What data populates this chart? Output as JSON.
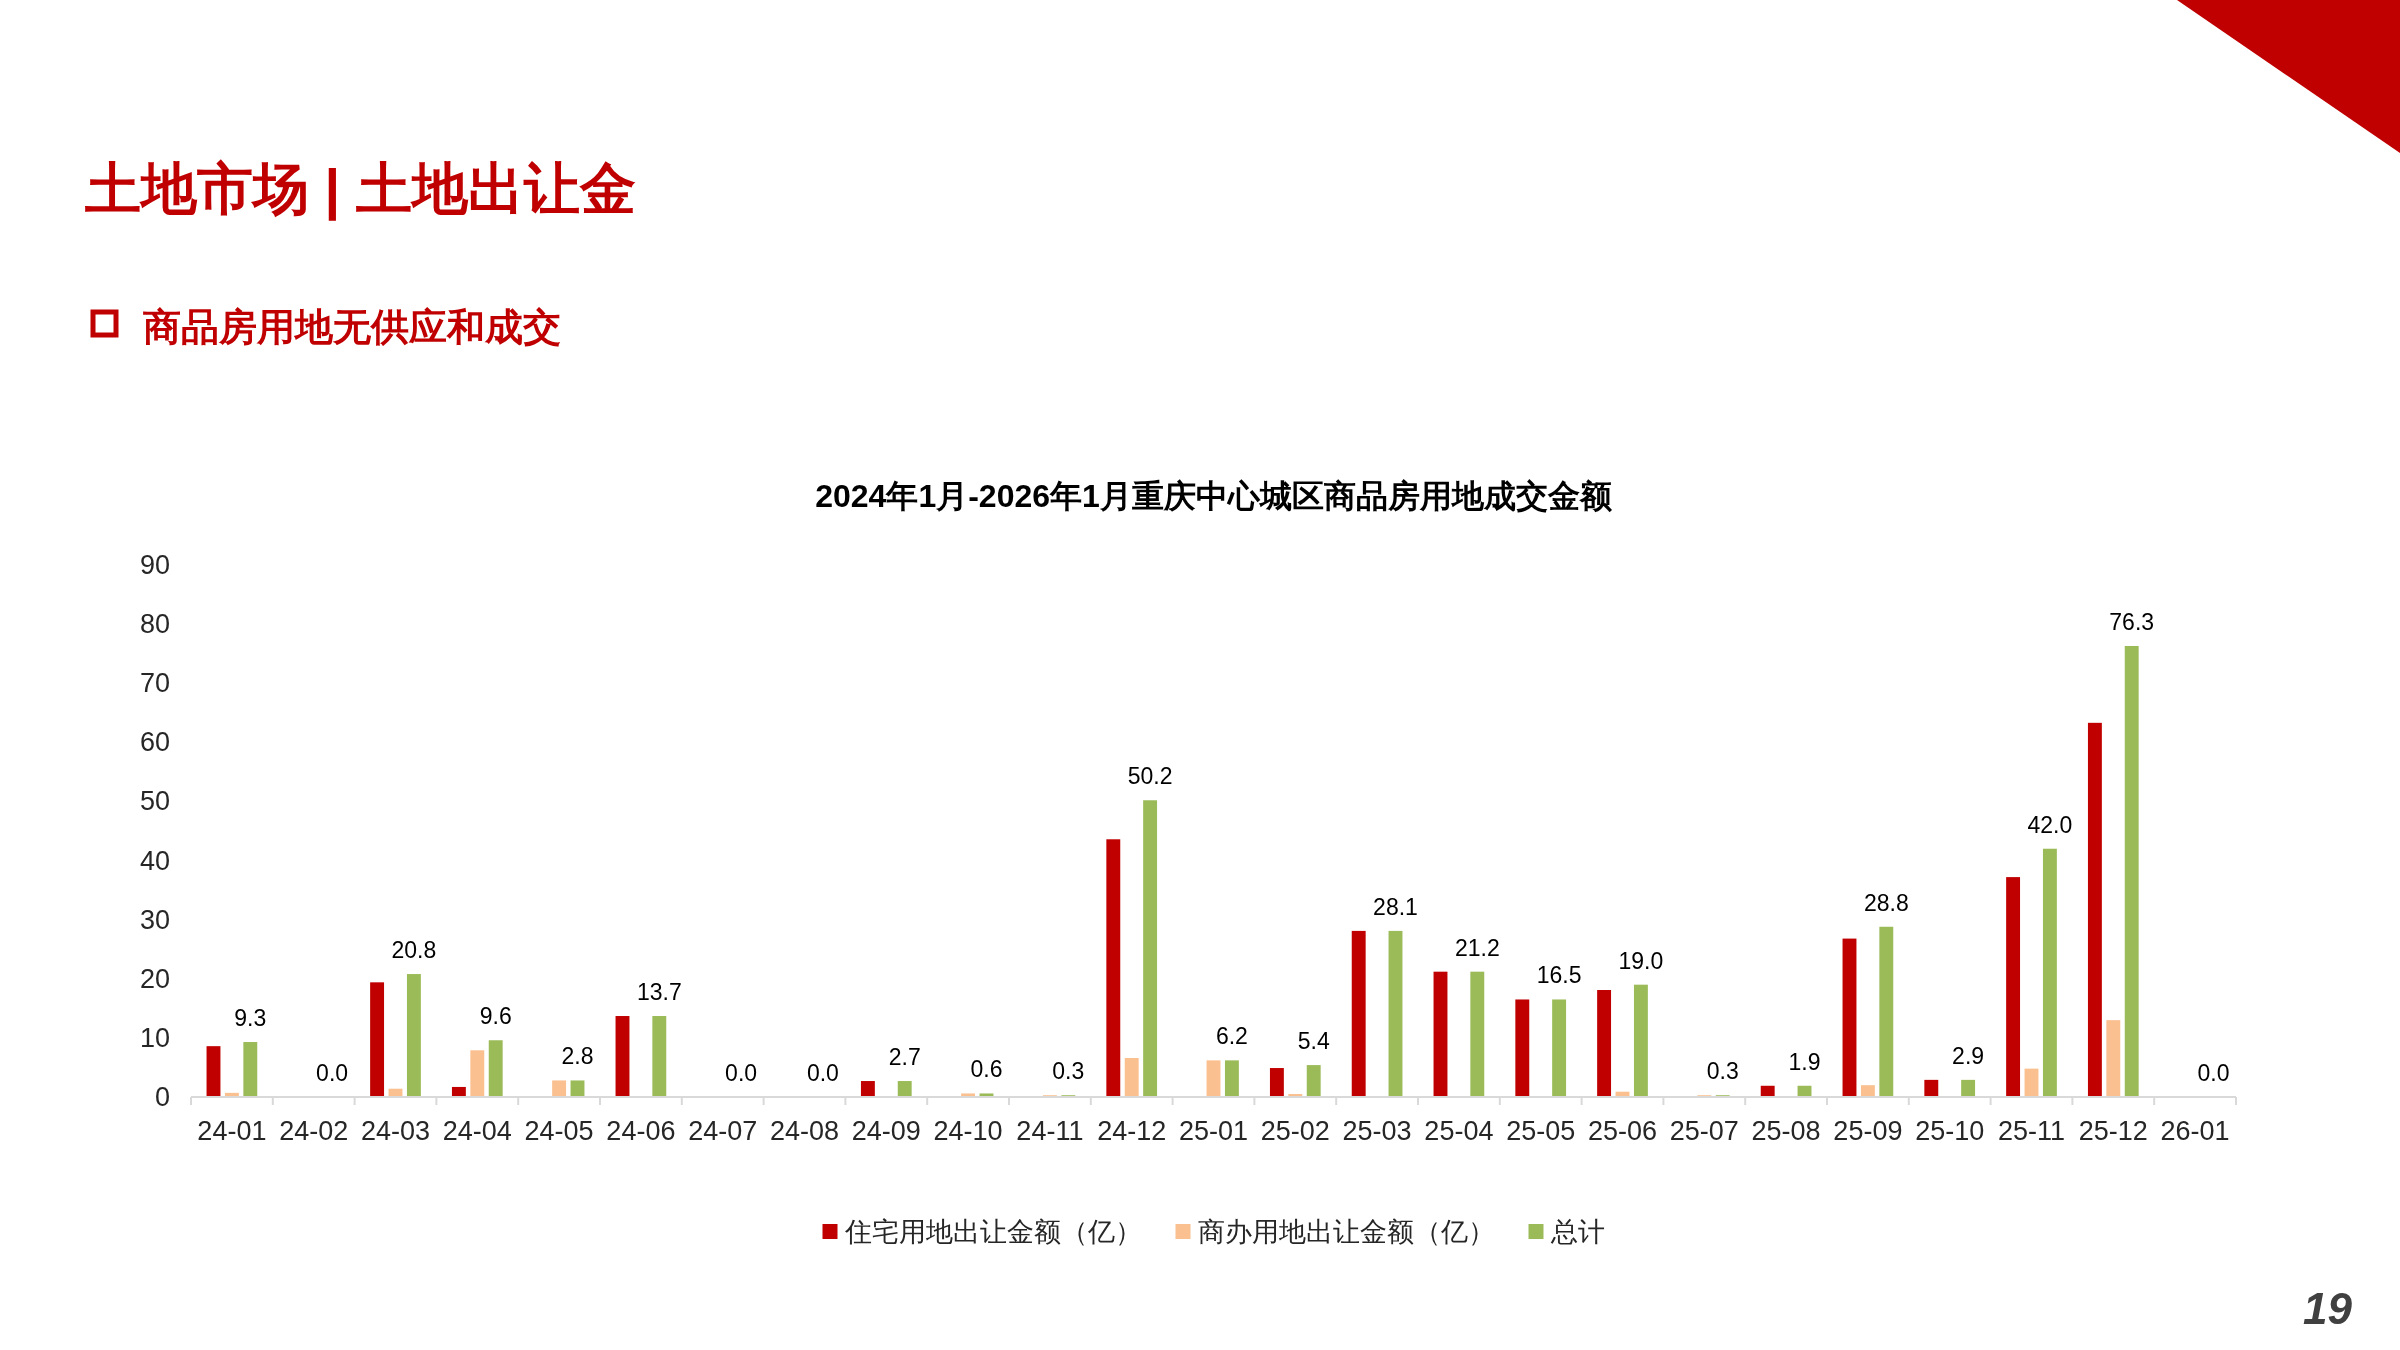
{
  "chart_data": {
    "type": "bar",
    "title": "2024年1月-2026年1月重庆中心城区商品房用地成交金额",
    "categories": [
      "24-01",
      "24-02",
      "24-03",
      "24-04",
      "24-05",
      "24-06",
      "24-07",
      "24-08",
      "24-09",
      "24-10",
      "24-11",
      "24-12",
      "25-01",
      "25-02",
      "25-03",
      "25-04",
      "25-05",
      "25-06",
      "25-07",
      "25-08",
      "25-09",
      "25-10",
      "25-11",
      "25-12",
      "26-01"
    ],
    "series": [
      {
        "name": "住宅用地出让金额（亿）",
        "color": "#c00000",
        "values": [
          8.6,
          0,
          19.4,
          1.7,
          0,
          13.7,
          0,
          0,
          2.7,
          0,
          0,
          43.6,
          0,
          4.9,
          28.1,
          21.2,
          16.5,
          18.1,
          0,
          1.9,
          26.8,
          2.9,
          37.2,
          63.3,
          0
        ]
      },
      {
        "name": "商办用地出让金额（亿）",
        "color": "#fac090",
        "values": [
          0.7,
          0,
          1.4,
          7.9,
          2.8,
          0,
          0,
          0,
          0,
          0.6,
          0.3,
          6.6,
          6.2,
          0.5,
          0,
          0,
          0,
          0.9,
          0.3,
          0,
          2.0,
          0,
          4.8,
          13.0,
          0
        ]
      },
      {
        "name": "总计",
        "color": "#9bbb59",
        "values": [
          9.3,
          0,
          20.8,
          9.6,
          2.8,
          13.7,
          0,
          0,
          2.7,
          0.6,
          0.3,
          50.2,
          6.2,
          5.4,
          28.1,
          21.2,
          16.5,
          19.0,
          0.3,
          1.9,
          28.8,
          2.9,
          42.0,
          76.3,
          0
        ],
        "value_labels": [
          "9.3",
          "0.0",
          "20.8",
          "9.6",
          "2.8",
          "13.7",
          "0.0",
          "0.0",
          "2.7",
          "0.6",
          "0.3",
          "50.2",
          "6.2",
          "5.4",
          "28.1",
          "21.2",
          "16.5",
          "19.0",
          "0.3",
          "1.9",
          "28.8",
          "2.9",
          "42.0",
          "76.3",
          "0.0"
        ]
      }
    ],
    "ylim": [
      0,
      90
    ],
    "yticks": [
      0,
      10,
      20,
      30,
      40,
      50,
      60,
      70,
      80,
      90
    ],
    "legend": "bottom",
    "annotations": [
      "土地市场 | 土地出让金",
      "商品房用地无供应和成交",
      "19"
    ]
  }
}
